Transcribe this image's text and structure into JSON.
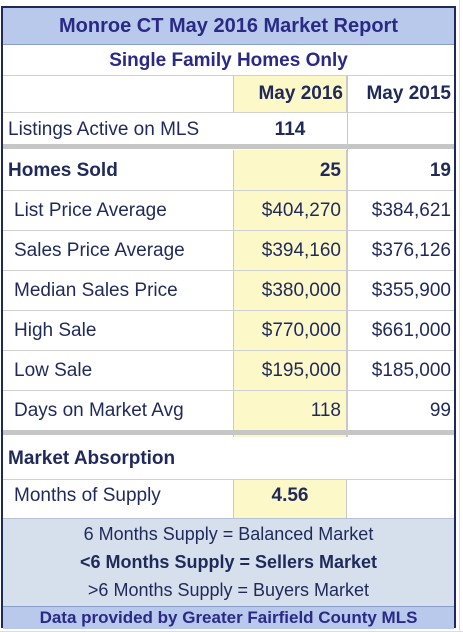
{
  "title": "Monroe CT May 2016 Market Report",
  "subtitle": "Single Family Homes Only",
  "columns": {
    "current": "May 2016",
    "prior": "May 2015"
  },
  "listings_active": {
    "label": "Listings Active on MLS",
    "current": "114",
    "prior": ""
  },
  "homes_sold": {
    "label": "Homes Sold",
    "current": "25",
    "prior": "19"
  },
  "metrics": [
    {
      "label": "List Price Average",
      "current": "$404,270",
      "prior": "$384,621"
    },
    {
      "label": "Sales Price Average",
      "current": "$394,160",
      "prior": "$376,126"
    },
    {
      "label": "Median Sales Price",
      "current": "$380,000",
      "prior": "$355,900"
    },
    {
      "label": "High Sale",
      "current": "$770,000",
      "prior": "$661,000"
    },
    {
      "label": "Low Sale",
      "current": "$195,000",
      "prior": "$185,000"
    },
    {
      "label": "Days on Market Avg",
      "current": "118",
      "prior": "99"
    }
  ],
  "absorption": {
    "heading": "Market Absorption",
    "label": "Months of Supply",
    "value": "4.56"
  },
  "notes": [
    "6 Months Supply = Balanced Market",
    "<6 Months Supply = Sellers Market",
    ">6 Months Supply = Buyers Market"
  ],
  "footer": "Data provided by Greater Fairfield County MLS",
  "colors": {
    "title_bg": "#b8c9ec",
    "title_text": "#2a2a86",
    "highlight_column": "#fdf8c8",
    "notes_bg": "#d6dfec"
  }
}
